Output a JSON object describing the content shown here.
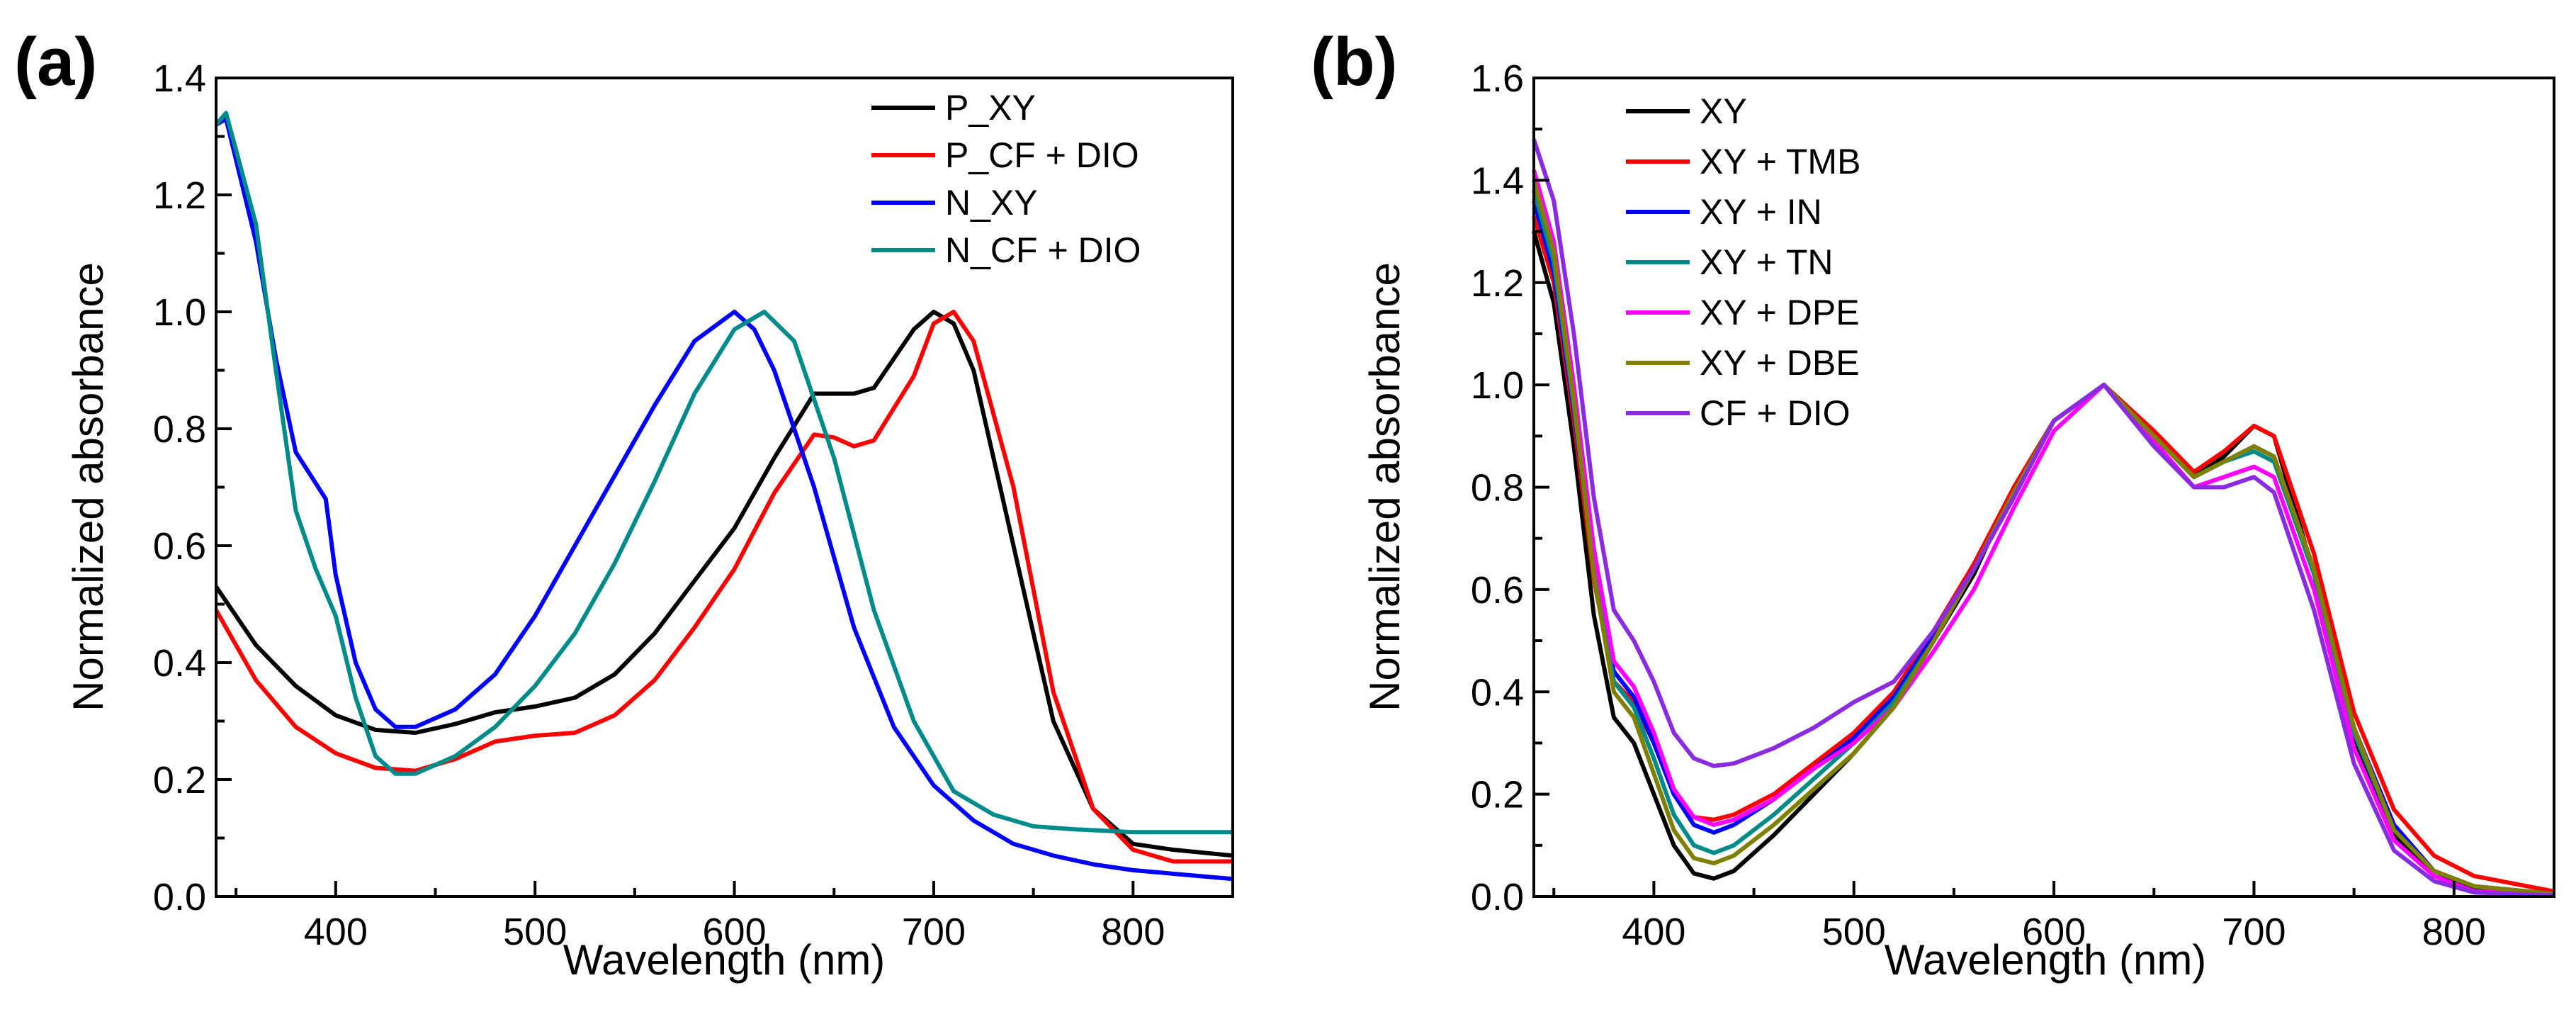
{
  "chart_data": [
    {
      "panel": "(a)",
      "type": "line",
      "xlabel": "Wavelength (nm)",
      "ylabel": "Normalized absorbance",
      "xlim": [
        340,
        850
      ],
      "ylim": [
        0.0,
        1.4
      ],
      "xticks": [
        400,
        500,
        600,
        700,
        800
      ],
      "xtick_labels": [
        "400",
        "500",
        "600",
        "700",
        "800"
      ],
      "yticks": [
        0.0,
        0.2,
        0.4,
        0.6,
        0.8,
        1.0,
        1.2,
        1.4
      ],
      "ytick_labels": [
        "0.0",
        "0.2",
        "0.4",
        "0.6",
        "0.8",
        "1.0",
        "1.2",
        "1.4"
      ],
      "legend_position": "top-right",
      "series": [
        {
          "name": "P_XY",
          "color": "#000000",
          "x": [
            340,
            360,
            380,
            400,
            420,
            440,
            460,
            480,
            500,
            520,
            540,
            560,
            580,
            600,
            620,
            640,
            660,
            670,
            690,
            700,
            710,
            720,
            740,
            760,
            780,
            800,
            820,
            850
          ],
          "y": [
            0.53,
            0.43,
            0.36,
            0.31,
            0.285,
            0.28,
            0.295,
            0.315,
            0.325,
            0.34,
            0.38,
            0.45,
            0.54,
            0.63,
            0.75,
            0.86,
            0.86,
            0.87,
            0.97,
            1.0,
            0.98,
            0.9,
            0.6,
            0.3,
            0.15,
            0.09,
            0.08,
            0.07
          ]
        },
        {
          "name": "P_CF + DIO",
          "color": "#ff0000",
          "x": [
            340,
            360,
            380,
            400,
            420,
            440,
            460,
            480,
            500,
            520,
            540,
            560,
            580,
            600,
            620,
            640,
            650,
            660,
            670,
            690,
            700,
            710,
            720,
            740,
            760,
            780,
            800,
            820,
            850
          ],
          "y": [
            0.49,
            0.37,
            0.29,
            0.245,
            0.22,
            0.215,
            0.235,
            0.265,
            0.275,
            0.28,
            0.31,
            0.37,
            0.46,
            0.56,
            0.69,
            0.79,
            0.785,
            0.77,
            0.78,
            0.89,
            0.98,
            1.0,
            0.95,
            0.7,
            0.35,
            0.15,
            0.08,
            0.06,
            0.06
          ]
        },
        {
          "name": "N_XY",
          "color": "#0000ff",
          "x": [
            340,
            345,
            360,
            370,
            380,
            395,
            400,
            410,
            420,
            430,
            440,
            460,
            480,
            500,
            520,
            540,
            560,
            580,
            600,
            610,
            620,
            640,
            660,
            680,
            700,
            720,
            740,
            760,
            780,
            800,
            850
          ],
          "y": [
            1.32,
            1.33,
            1.12,
            0.92,
            0.76,
            0.68,
            0.55,
            0.4,
            0.32,
            0.29,
            0.29,
            0.32,
            0.38,
            0.48,
            0.6,
            0.72,
            0.84,
            0.95,
            1.0,
            0.97,
            0.9,
            0.7,
            0.46,
            0.29,
            0.19,
            0.13,
            0.09,
            0.07,
            0.055,
            0.045,
            0.03
          ]
        },
        {
          "name": "N_CF + DIO",
          "color": "#008b8b",
          "x": [
            340,
            345,
            360,
            370,
            380,
            390,
            400,
            410,
            420,
            430,
            440,
            460,
            480,
            500,
            520,
            540,
            560,
            580,
            600,
            615,
            630,
            650,
            670,
            690,
            710,
            730,
            750,
            770,
            800,
            850
          ],
          "y": [
            1.32,
            1.34,
            1.15,
            0.9,
            0.66,
            0.56,
            0.48,
            0.34,
            0.24,
            0.21,
            0.21,
            0.24,
            0.29,
            0.36,
            0.45,
            0.57,
            0.71,
            0.86,
            0.97,
            1.0,
            0.95,
            0.75,
            0.49,
            0.3,
            0.18,
            0.14,
            0.12,
            0.115,
            0.11,
            0.11
          ]
        }
      ]
    },
    {
      "panel": "(b)",
      "type": "line",
      "xlabel": "Wavelength (nm)",
      "ylabel": "Normalized absorbance",
      "xlim": [
        340,
        850
      ],
      "ylim": [
        0.0,
        1.6
      ],
      "xticks": [
        400,
        500,
        600,
        700,
        800
      ],
      "xtick_labels": [
        "400",
        "500",
        "600",
        "700",
        "800"
      ],
      "yticks": [
        0.0,
        0.2,
        0.4,
        0.6,
        0.8,
        1.0,
        1.2,
        1.4,
        1.6
      ],
      "ytick_labels": [
        "0.0",
        "0.2",
        "0.4",
        "0.6",
        "0.8",
        "1.0",
        "1.2",
        "1.4",
        "1.6"
      ],
      "legend_position": "top-left",
      "series": [
        {
          "name": "XY",
          "color": "#000000",
          "x": [
            340,
            350,
            360,
            370,
            380,
            390,
            400,
            410,
            420,
            430,
            440,
            460,
            480,
            500,
            520,
            540,
            560,
            580,
            600,
            625,
            650,
            670,
            685,
            700,
            710,
            730,
            750,
            770,
            790,
            810,
            850
          ],
          "y": [
            1.3,
            1.16,
            0.88,
            0.55,
            0.35,
            0.3,
            0.2,
            0.1,
            0.045,
            0.035,
            0.05,
            0.12,
            0.2,
            0.28,
            0.37,
            0.5,
            0.63,
            0.8,
            0.93,
            1.0,
            0.9,
            0.82,
            0.86,
            0.92,
            0.9,
            0.63,
            0.3,
            0.12,
            0.04,
            0.015,
            0.005
          ]
        },
        {
          "name": "XY + TMB",
          "color": "#ff0000",
          "x": [
            340,
            350,
            360,
            370,
            380,
            390,
            400,
            410,
            420,
            430,
            440,
            460,
            480,
            500,
            520,
            540,
            560,
            580,
            600,
            625,
            650,
            670,
            685,
            700,
            710,
            730,
            750,
            770,
            790,
            810,
            850
          ],
          "y": [
            1.33,
            1.2,
            0.93,
            0.62,
            0.42,
            0.38,
            0.3,
            0.2,
            0.155,
            0.15,
            0.16,
            0.2,
            0.26,
            0.32,
            0.4,
            0.52,
            0.65,
            0.8,
            0.93,
            1.0,
            0.91,
            0.83,
            0.87,
            0.92,
            0.9,
            0.67,
            0.36,
            0.17,
            0.08,
            0.04,
            0.01
          ]
        },
        {
          "name": "XY + IN",
          "color": "#0000ff",
          "x": [
            340,
            350,
            360,
            370,
            380,
            390,
            400,
            410,
            420,
            430,
            440,
            460,
            480,
            500,
            520,
            540,
            560,
            580,
            600,
            625,
            650,
            670,
            685,
            700,
            710,
            730,
            750,
            770,
            790,
            810,
            850
          ],
          "y": [
            1.36,
            1.22,
            0.95,
            0.64,
            0.44,
            0.39,
            0.3,
            0.2,
            0.14,
            0.125,
            0.14,
            0.19,
            0.25,
            0.31,
            0.39,
            0.51,
            0.64,
            0.79,
            0.93,
            1.0,
            0.9,
            0.82,
            0.85,
            0.88,
            0.86,
            0.64,
            0.33,
            0.14,
            0.05,
            0.02,
            0.005
          ]
        },
        {
          "name": "XY + TN",
          "color": "#008b8b",
          "x": [
            340,
            350,
            360,
            370,
            380,
            390,
            400,
            410,
            420,
            430,
            440,
            460,
            480,
            500,
            520,
            540,
            560,
            580,
            600,
            625,
            650,
            670,
            685,
            700,
            710,
            730,
            750,
            770,
            790,
            810,
            850
          ],
          "y": [
            1.38,
            1.24,
            0.96,
            0.64,
            0.42,
            0.37,
            0.27,
            0.16,
            0.1,
            0.085,
            0.1,
            0.16,
            0.23,
            0.3,
            0.38,
            0.5,
            0.64,
            0.79,
            0.93,
            1.0,
            0.9,
            0.82,
            0.85,
            0.87,
            0.85,
            0.63,
            0.32,
            0.13,
            0.05,
            0.02,
            0.005
          ]
        },
        {
          "name": "XY + DPE",
          "color": "#ff00ff",
          "x": [
            340,
            350,
            360,
            370,
            380,
            390,
            400,
            410,
            420,
            430,
            440,
            460,
            480,
            500,
            520,
            540,
            560,
            580,
            600,
            625,
            650,
            670,
            685,
            700,
            710,
            730,
            750,
            770,
            790,
            810,
            850
          ],
          "y": [
            1.42,
            1.28,
            1.0,
            0.68,
            0.46,
            0.41,
            0.32,
            0.21,
            0.155,
            0.14,
            0.15,
            0.19,
            0.25,
            0.3,
            0.37,
            0.48,
            0.6,
            0.76,
            0.91,
            1.0,
            0.89,
            0.8,
            0.82,
            0.84,
            0.82,
            0.6,
            0.29,
            0.11,
            0.04,
            0.01,
            0.003
          ]
        },
        {
          "name": "XY + DBE",
          "color": "#808000",
          "x": [
            340,
            350,
            360,
            370,
            380,
            390,
            400,
            410,
            420,
            430,
            440,
            460,
            480,
            500,
            520,
            540,
            560,
            580,
            600,
            625,
            650,
            670,
            685,
            700,
            710,
            730,
            750,
            770,
            790,
            810,
            850
          ],
          "y": [
            1.4,
            1.26,
            0.97,
            0.63,
            0.4,
            0.35,
            0.24,
            0.13,
            0.075,
            0.065,
            0.08,
            0.14,
            0.21,
            0.28,
            0.37,
            0.5,
            0.64,
            0.79,
            0.93,
            1.0,
            0.9,
            0.82,
            0.85,
            0.88,
            0.86,
            0.64,
            0.33,
            0.13,
            0.05,
            0.02,
            0.005
          ]
        },
        {
          "name": "CF + DIO",
          "color": "#8a2be2",
          "x": [
            340,
            350,
            360,
            370,
            380,
            390,
            400,
            410,
            420,
            430,
            440,
            460,
            480,
            500,
            520,
            540,
            560,
            580,
            600,
            625,
            650,
            670,
            685,
            700,
            710,
            730,
            750,
            770,
            790,
            810,
            850
          ],
          "y": [
            1.48,
            1.36,
            1.1,
            0.78,
            0.56,
            0.5,
            0.42,
            0.32,
            0.27,
            0.255,
            0.26,
            0.29,
            0.33,
            0.38,
            0.42,
            0.52,
            0.64,
            0.78,
            0.93,
            1.0,
            0.88,
            0.8,
            0.8,
            0.82,
            0.79,
            0.56,
            0.26,
            0.09,
            0.03,
            0.008,
            0.002
          ]
        }
      ]
    }
  ]
}
